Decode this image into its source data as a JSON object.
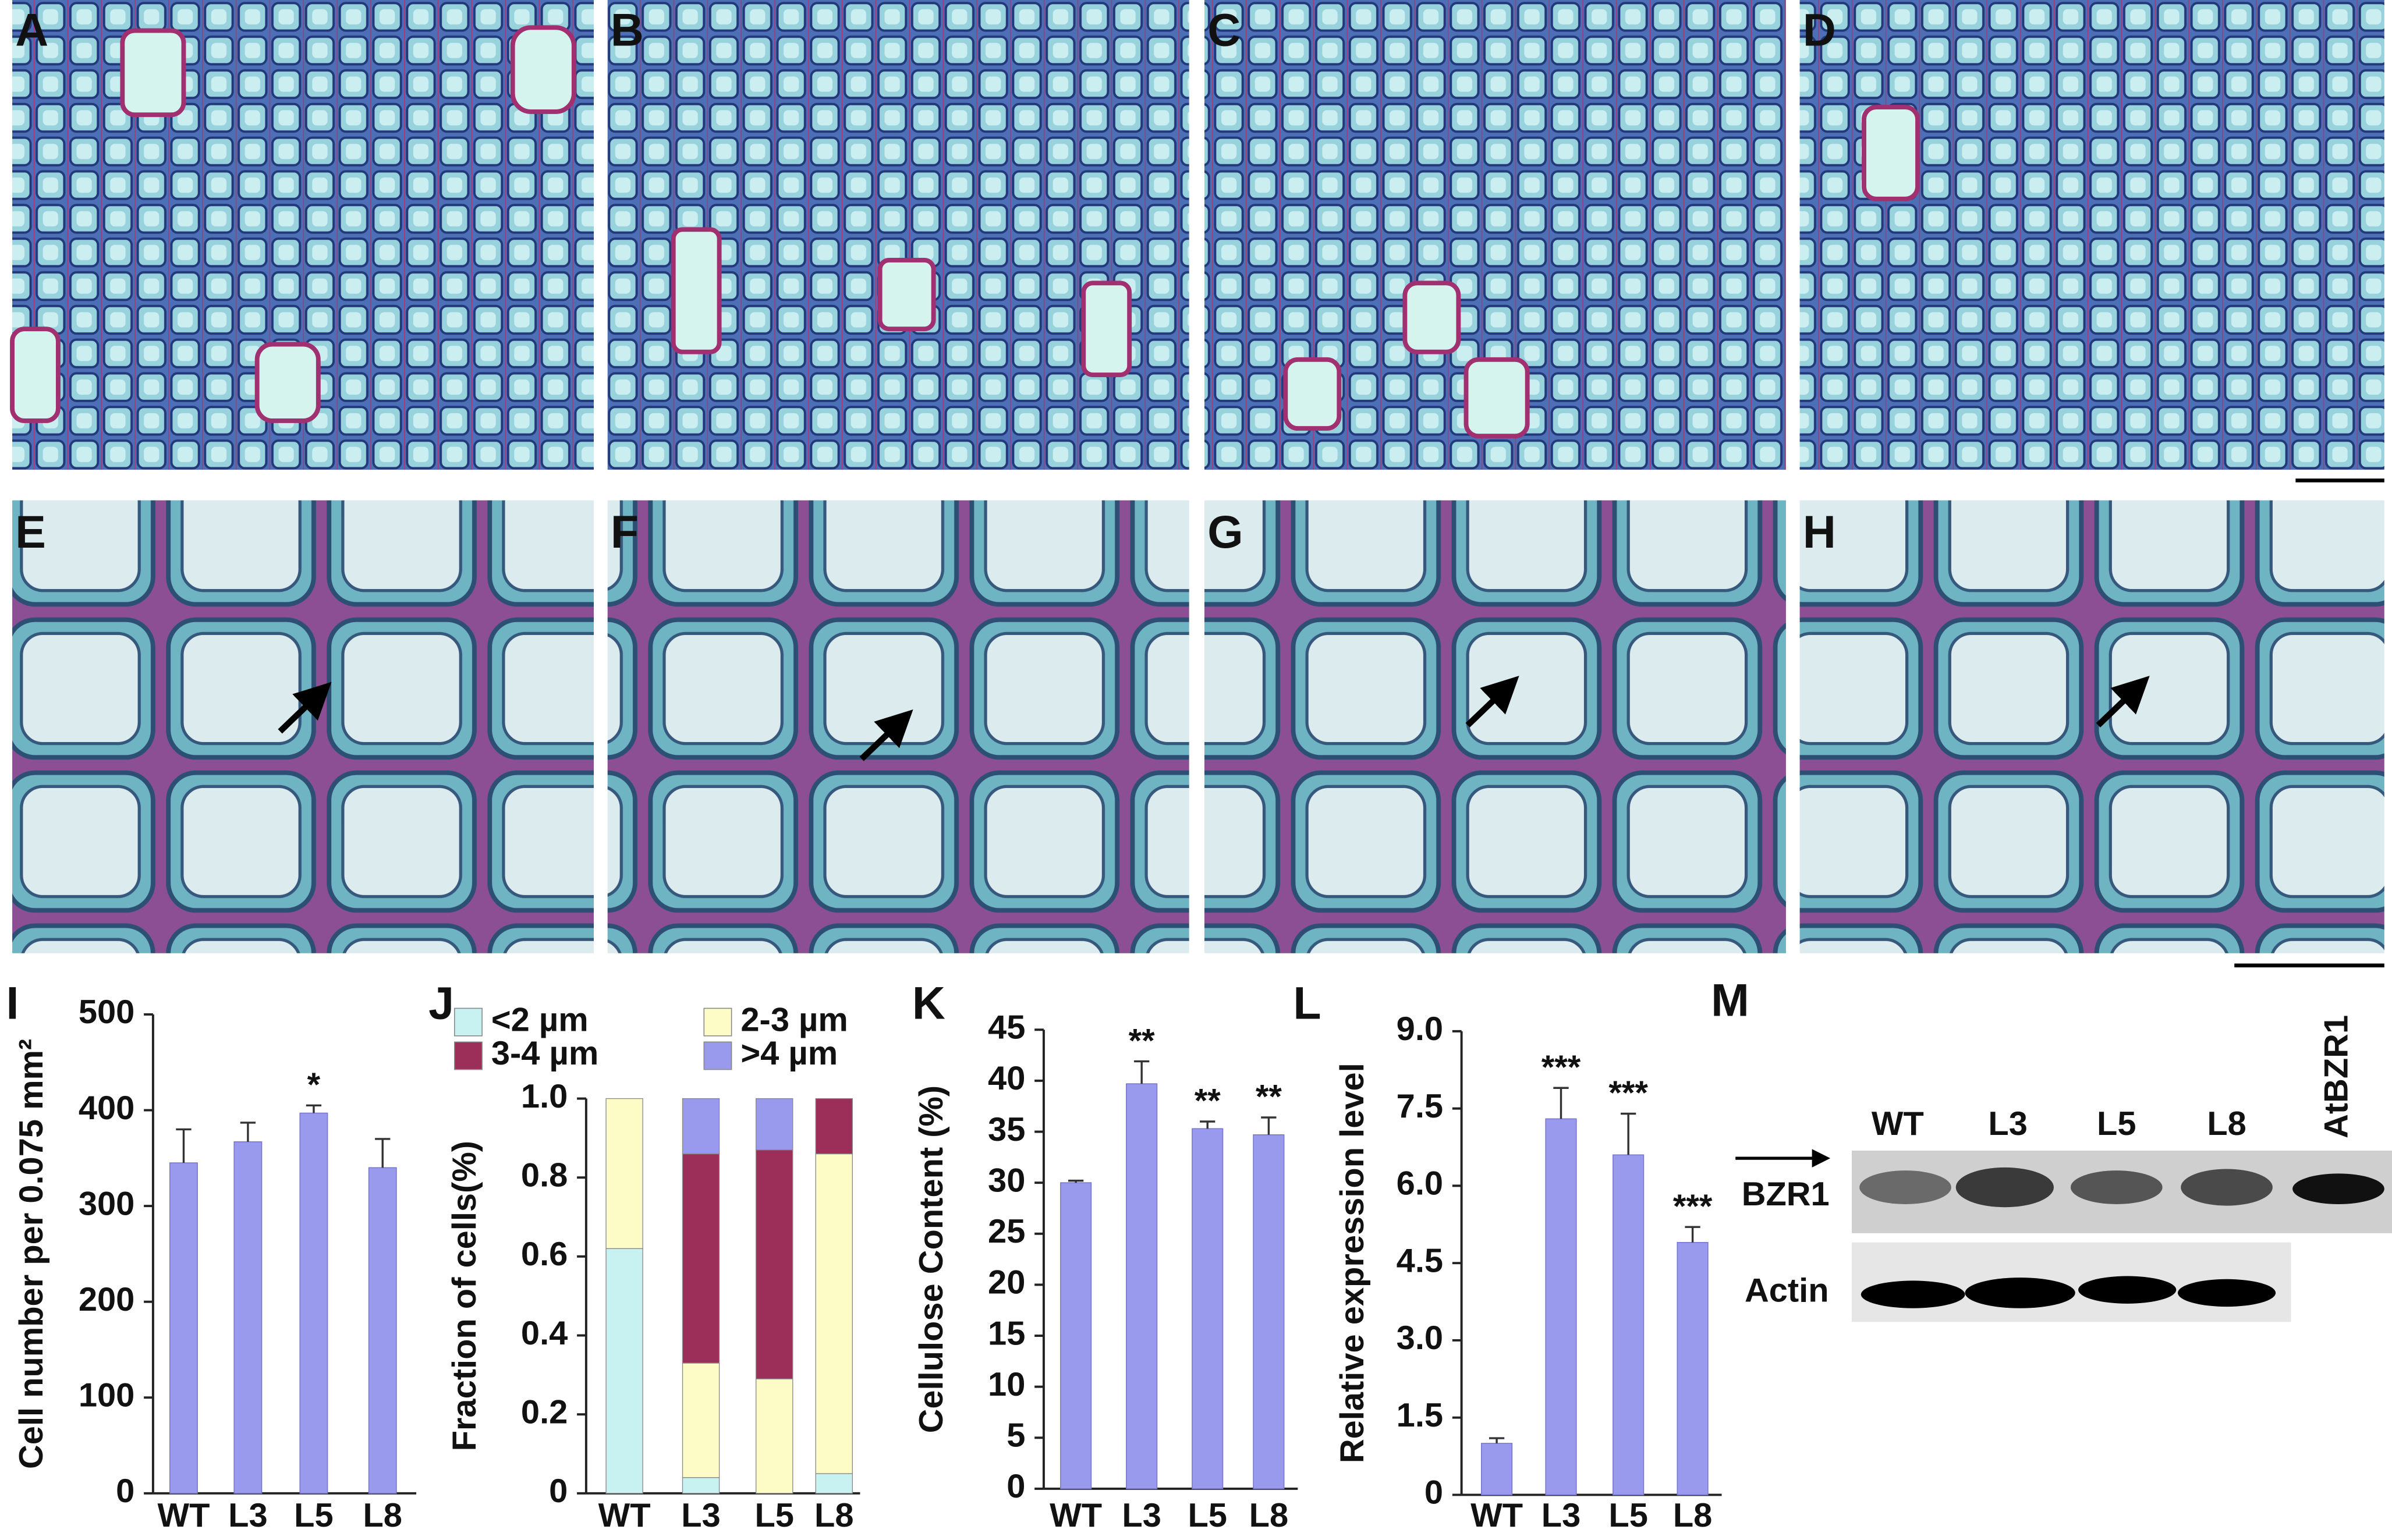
{
  "panels": [
    "A",
    "B",
    "C",
    "D",
    "E",
    "F",
    "G",
    "H",
    "M"
  ],
  "blot": {
    "lanes": [
      "WT",
      "L3",
      "L5",
      "L8",
      "AtBZR1"
    ],
    "rows": [
      "BZR1",
      "Actin"
    ]
  },
  "chart_data": [
    {
      "type": "bar",
      "panel": "I",
      "ylabel": "Cell number per 0.075 mm²",
      "categories": [
        "WT",
        "L3",
        "L5",
        "L8"
      ],
      "values": [
        345,
        367,
        397,
        340
      ],
      "errors": [
        35,
        20,
        8,
        30
      ],
      "significance": [
        null,
        null,
        "*",
        null
      ],
      "color": "#9999ee",
      "ylim": [
        0,
        500
      ],
      "yticks": [
        0,
        100,
        200,
        300,
        400,
        500
      ]
    },
    {
      "type": "stacked_bar",
      "panel": "J",
      "ylabel": "Fraction of cells(%)",
      "categories": [
        "WT",
        "L3",
        "L5",
        "L8"
      ],
      "series": [
        {
          "name": "<2 µm",
          "color": "#c8f2f2",
          "values": [
            0.62,
            0.04,
            0,
            0.05
          ]
        },
        {
          "name": "2-3 µm",
          "color": "#fdfbc6",
          "values": [
            0.38,
            0.29,
            0.29,
            0.81
          ]
        },
        {
          "name": "3-4 µm",
          "color": "#9b2f5a",
          "values": [
            0,
            0.53,
            0.58,
            0.14
          ]
        },
        {
          "name": ">4 µm",
          "color": "#9999ee",
          "values": [
            0,
            0.14,
            0.13,
            0
          ]
        }
      ],
      "ylim": [
        0,
        1
      ],
      "yticks": [
        0,
        0.2,
        0.4,
        0.6,
        0.8,
        {
          "value": 1,
          "label": "1.0"
        }
      ]
    },
    {
      "type": "bar",
      "panel": "K",
      "ylabel": "Cellulose Content (%)",
      "categories": [
        "WT",
        "L3",
        "L5",
        "L8"
      ],
      "values": [
        30,
        39.7,
        35.3,
        34.7
      ],
      "errors": [
        0.2,
        2.2,
        0.7,
        1.7
      ],
      "significance": [
        null,
        "**",
        "**",
        "**"
      ],
      "color": "#9999ee",
      "ylim": [
        0,
        45
      ],
      "yticks": [
        0,
        5,
        10,
        15,
        20,
        25,
        30,
        35,
        40,
        45
      ]
    },
    {
      "type": "bar",
      "panel": "L",
      "ylabel": "Relative expression level",
      "categories": [
        "WT",
        "L3",
        "L5",
        "L8"
      ],
      "values": [
        1.0,
        7.3,
        6.6,
        4.9
      ],
      "errors": [
        0.1,
        0.6,
        0.8,
        0.3
      ],
      "significance": [
        null,
        "***",
        "***",
        "***"
      ],
      "color": "#9999ee",
      "ylim": [
        0,
        9
      ],
      "yticks": [
        0,
        1.5,
        {
          "value": 3,
          "label": "3.0"
        },
        4.5,
        {
          "value": 6,
          "label": "6.0"
        },
        7.5,
        {
          "value": 9,
          "label": "9.0"
        }
      ]
    }
  ]
}
